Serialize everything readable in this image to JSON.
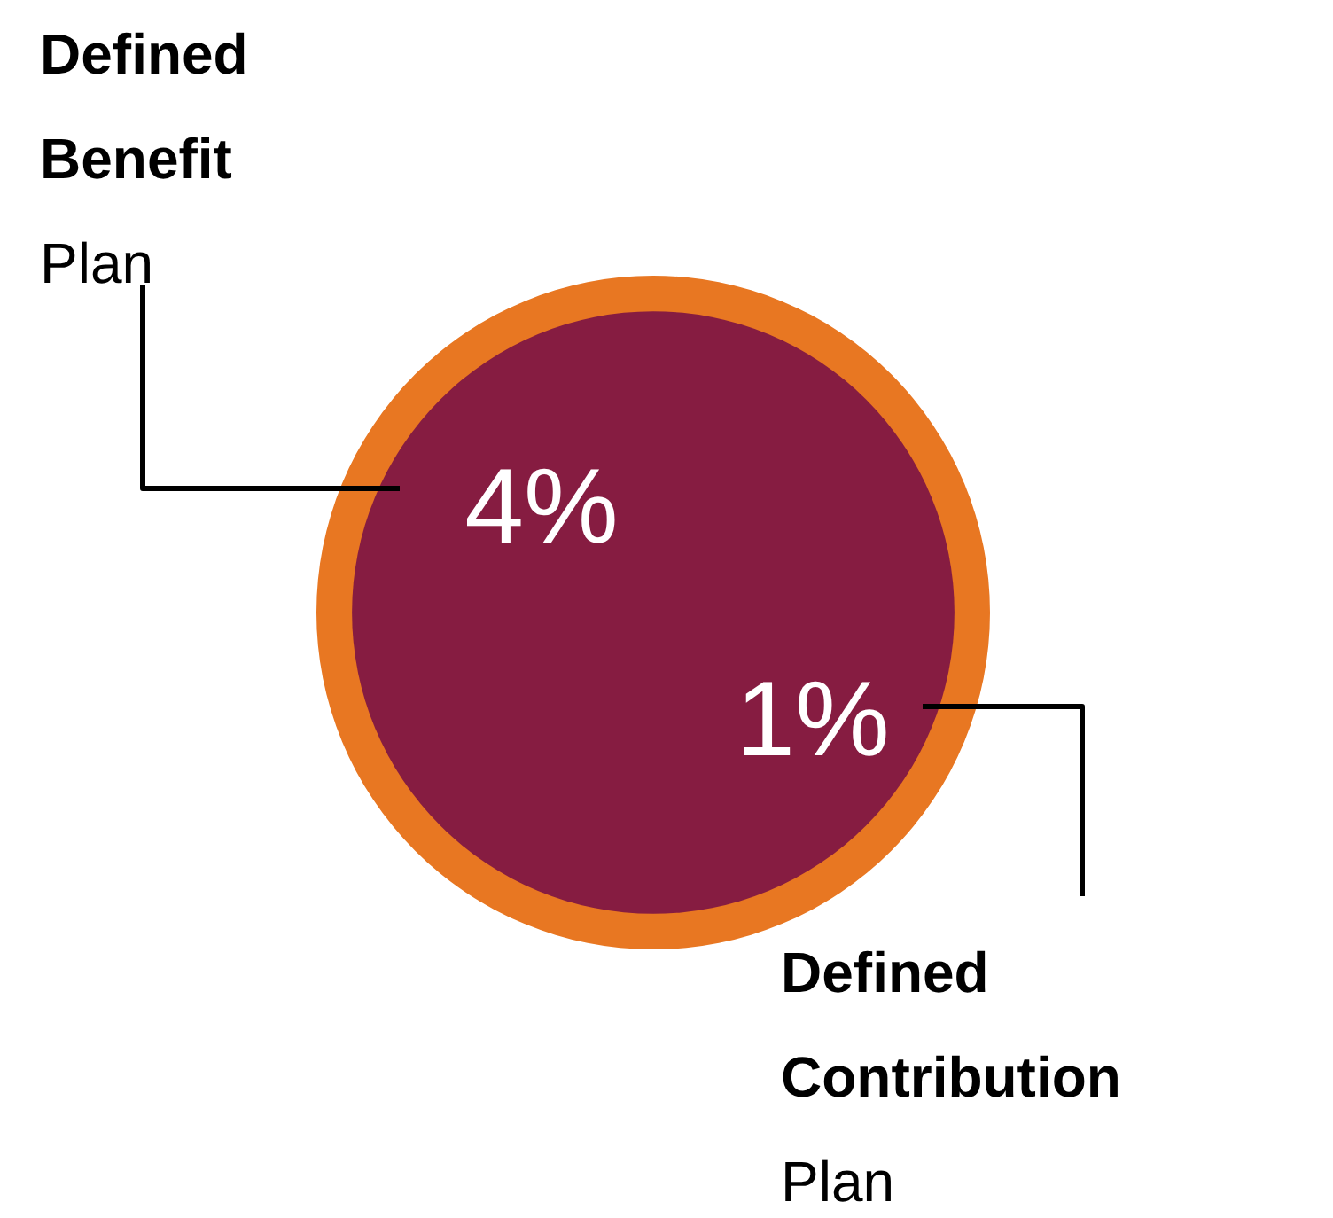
{
  "chart_data": {
    "type": "other",
    "categories": [
      "Defined Benefit Plan",
      "Defined Contribution Plan"
    ],
    "values": [
      4,
      1
    ],
    "value_labels": [
      "4%",
      "1%"
    ],
    "colors": [
      "#861c41",
      "#e87722"
    ]
  }
}
